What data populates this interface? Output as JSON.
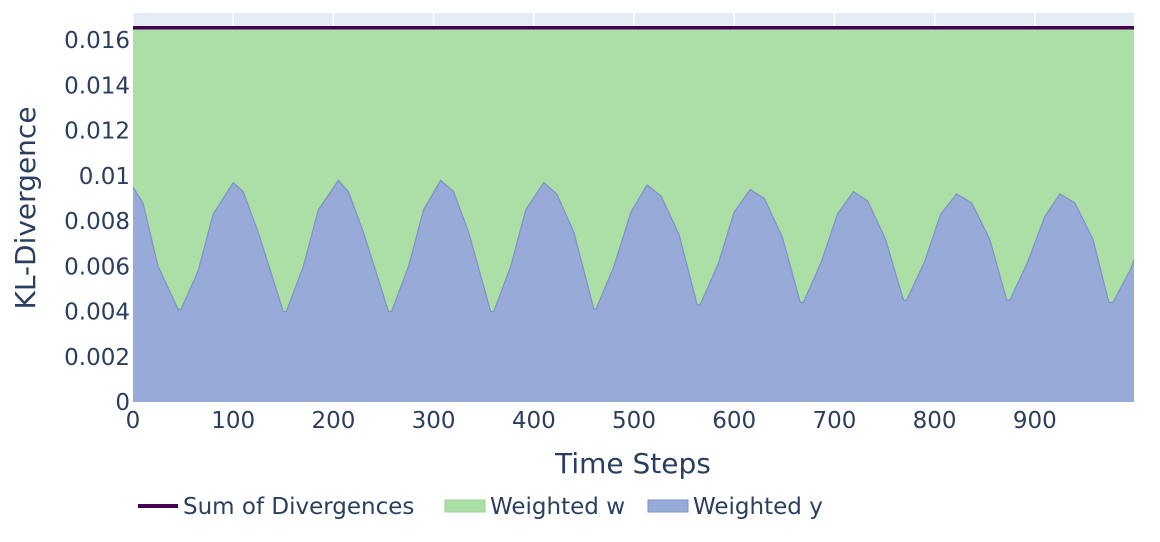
{
  "chart_data": {
    "type": "area",
    "xlabel": "Time Steps",
    "ylabel": "KL-Divergence",
    "xlim": [
      0,
      999
    ],
    "ylim": [
      0,
      0.0172
    ],
    "grid": true,
    "legend_position": "bottom-left, horizontal",
    "x_ticks": [
      {
        "value": 0,
        "label": "0"
      },
      {
        "value": 100,
        "label": "100"
      },
      {
        "value": 200,
        "label": "200"
      },
      {
        "value": 300,
        "label": "300"
      },
      {
        "value": 400,
        "label": "400"
      },
      {
        "value": 500,
        "label": "500"
      },
      {
        "value": 600,
        "label": "600"
      },
      {
        "value": 700,
        "label": "700"
      },
      {
        "value": 800,
        "label": "800"
      },
      {
        "value": 900,
        "label": "900"
      }
    ],
    "y_ticks": [
      {
        "value": 0,
        "label": "0"
      },
      {
        "value": 0.002,
        "label": "0.002"
      },
      {
        "value": 0.004,
        "label": "0.004"
      },
      {
        "value": 0.006,
        "label": "0.006"
      },
      {
        "value": 0.008,
        "label": "0.008"
      },
      {
        "value": 0.01,
        "label": "0.01"
      },
      {
        "value": 0.012,
        "label": "0.012"
      },
      {
        "value": 0.014,
        "label": "0.014"
      },
      {
        "value": 0.016,
        "label": "0.016"
      }
    ],
    "series": [
      {
        "name": "Sum of Divergences",
        "kind": "line",
        "color": "#440154",
        "x": [
          0,
          999
        ],
        "y": [
          0.01655,
          0.01655
        ]
      },
      {
        "name": "Weighted w",
        "kind": "stacked-area",
        "color": "#aadea4",
        "line_color": "#9bd295",
        "note_values": "fills from Weighted y up to Sum of Divergences (w = sum - y)",
        "x": [
          0,
          999
        ],
        "y": [
          0.01655,
          0.01655
        ]
      },
      {
        "name": "Weighted y",
        "kind": "area",
        "color": "#98aad8",
        "line_color": "#7e91c9",
        "x": [
          0,
          10,
          25,
          45,
          48,
          65,
          80,
          100,
          110,
          125,
          150,
          153,
          170,
          185,
          205,
          215,
          230,
          255,
          258,
          275,
          290,
          307,
          320,
          335,
          357,
          360,
          377,
          392,
          410,
          423,
          440,
          460,
          462,
          480,
          497,
          513,
          527,
          545,
          563,
          566,
          584,
          600,
          616,
          630,
          648,
          666,
          669,
          687,
          703,
          719,
          733,
          751,
          769,
          772,
          790,
          806,
          822,
          837,
          855,
          872,
          875,
          893,
          910,
          925,
          940,
          958,
          974,
          978,
          996,
          999
        ],
        "y": [
          0.0095,
          0.0088,
          0.006,
          0.0041,
          0.0041,
          0.0058,
          0.0083,
          0.0097,
          0.0093,
          0.0075,
          0.004,
          0.004,
          0.006,
          0.0085,
          0.0098,
          0.0093,
          0.0075,
          0.004,
          0.004,
          0.006,
          0.0085,
          0.0098,
          0.0093,
          0.0075,
          0.004,
          0.004,
          0.006,
          0.0085,
          0.0097,
          0.0092,
          0.0075,
          0.0041,
          0.0041,
          0.006,
          0.0084,
          0.0096,
          0.0091,
          0.0074,
          0.0043,
          0.0043,
          0.0061,
          0.0084,
          0.0094,
          0.009,
          0.0073,
          0.0044,
          0.0044,
          0.0062,
          0.0083,
          0.0093,
          0.0089,
          0.0072,
          0.0045,
          0.0045,
          0.0062,
          0.0083,
          0.0092,
          0.0088,
          0.0072,
          0.0045,
          0.0045,
          0.0062,
          0.0082,
          0.0092,
          0.0088,
          0.0072,
          0.0044,
          0.0044,
          0.0059,
          0.0063
        ]
      }
    ]
  }
}
